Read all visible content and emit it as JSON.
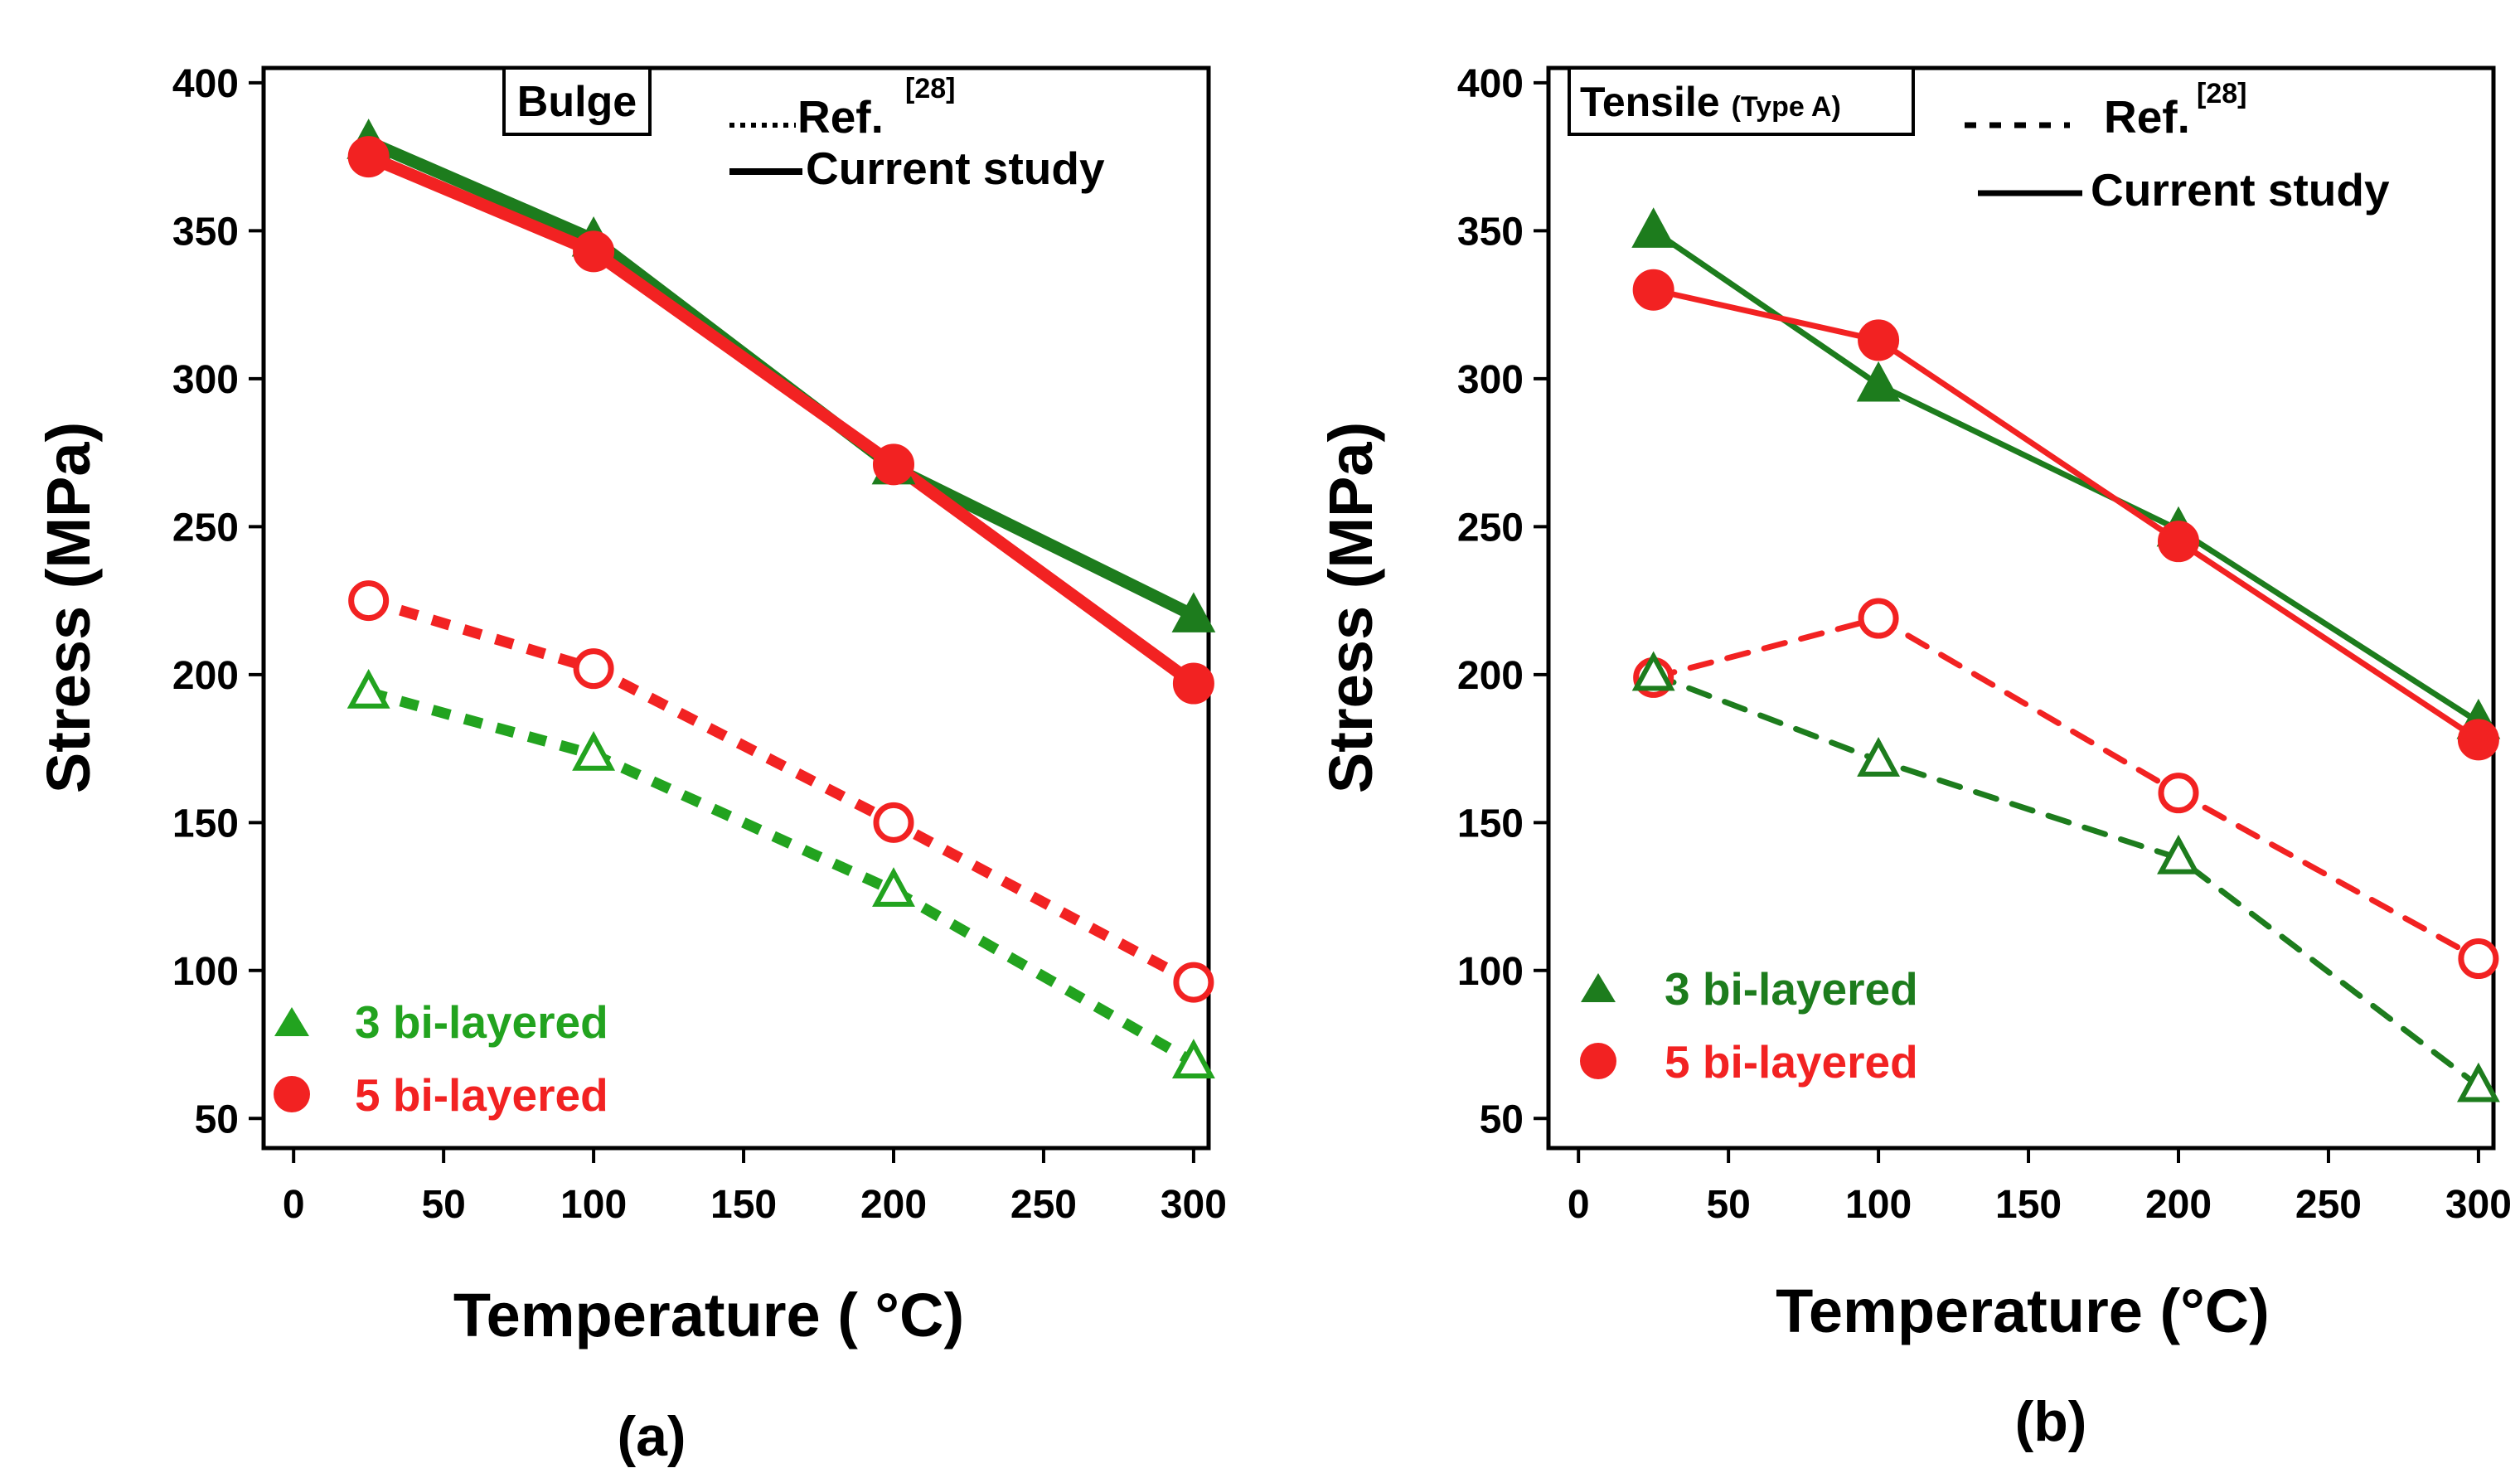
{
  "colors": {
    "green": "#1d7c1d",
    "green_bright": "#22a31f",
    "red": "#f22222",
    "axis": "#000000"
  },
  "chart_data": [
    {
      "type": "line",
      "panel": "a",
      "caption": "(a)",
      "title_box": "Bulge",
      "xlabel": "Temperature ( °C)",
      "ylabel": "Stress (MPa)",
      "xlim": [
        -10,
        305
      ],
      "ylim": [
        40,
        405
      ],
      "xticks": [
        0,
        50,
        100,
        150,
        200,
        250,
        300
      ],
      "yticks": [
        50,
        100,
        150,
        200,
        250,
        300,
        350,
        400
      ],
      "x": [
        25,
        100,
        200,
        300
      ],
      "style_legend": {
        "ref": "Ref.",
        "ref_sup": "[28]",
        "current": "Current study"
      },
      "series": [
        {
          "name": "3 bi-layered (current)",
          "color": "#1d7c1d",
          "values": [
            380,
            347,
            270,
            220
          ],
          "marker": "triangle",
          "filled": true,
          "dash": "none",
          "width": 15
        },
        {
          "name": "5 bi-layered (current)",
          "color": "#f22222",
          "values": [
            375,
            343,
            271,
            197
          ],
          "marker": "circle",
          "filled": true,
          "dash": "none",
          "width": 15
        },
        {
          "name": "5 bi-layered (Ref. [28])",
          "color": "#f22222",
          "values": [
            225,
            202,
            150,
            96
          ],
          "marker": "circle",
          "filled": false,
          "dash": "dot",
          "width": 13
        },
        {
          "name": "3 bi-layered (Ref. [28])",
          "color": "#22a31f",
          "values": [
            194,
            173,
            127,
            69
          ],
          "marker": "triangle",
          "filled": false,
          "dash": "dot",
          "width": 13
        }
      ],
      "legend": [
        {
          "label": "3 bi-layered",
          "color": "#22a31f",
          "marker": "triangle"
        },
        {
          "label": "5 bi-layered",
          "color": "#f22222",
          "marker": "circle"
        }
      ]
    },
    {
      "type": "line",
      "panel": "b",
      "caption": "(b)",
      "title_box": "Tensile",
      "title_box_sub": "(Type A)",
      "xlabel": "Temperature (°C)",
      "ylabel": "Stress (MPa)",
      "xlim": [
        -10,
        305
      ],
      "ylim": [
        40,
        405
      ],
      "xticks": [
        0,
        50,
        100,
        150,
        200,
        250,
        300
      ],
      "yticks": [
        50,
        100,
        150,
        200,
        250,
        300,
        350,
        400
      ],
      "x": [
        25,
        100,
        200,
        300
      ],
      "style_legend": {
        "ref": "Ref.",
        "ref_sup": "[28]",
        "current": "Current study"
      },
      "series": [
        {
          "name": "3 bi-layered (current)",
          "color": "#1d7c1d",
          "values": [
            350,
            298,
            249,
            184
          ],
          "marker": "triangle",
          "filled": true,
          "dash": "none",
          "width": 7
        },
        {
          "name": "5 bi-layered (current)",
          "color": "#f22222",
          "values": [
            330,
            313,
            245,
            178
          ],
          "marker": "circle",
          "filled": true,
          "dash": "none",
          "width": 7
        },
        {
          "name": "5 bi-layered (Ref. [28])",
          "color": "#f22222",
          "values": [
            199,
            219,
            160,
            104
          ],
          "marker": "circle",
          "filled": false,
          "dash": "dash",
          "width": 7
        },
        {
          "name": "3 bi-layered (Ref. [28])",
          "color": "#1d7c1d",
          "values": [
            200,
            171,
            138,
            61
          ],
          "marker": "triangle",
          "filled": false,
          "dash": "dash",
          "width": 7
        }
      ],
      "legend": [
        {
          "label": "3 bi-layered",
          "color": "#1d7c1d",
          "marker": "triangle"
        },
        {
          "label": "5 bi-layered",
          "color": "#f22222",
          "marker": "circle"
        }
      ]
    }
  ]
}
